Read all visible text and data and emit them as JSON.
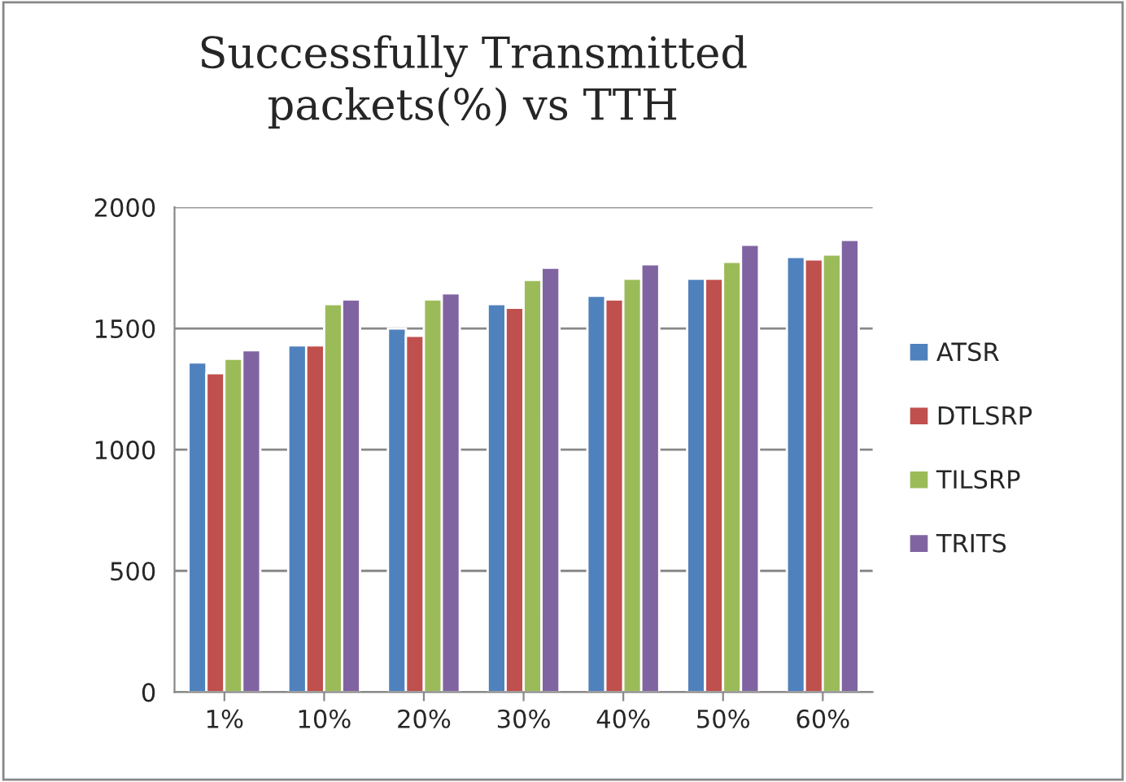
{
  "chart_data": {
    "type": "bar",
    "title": "Successfully Transmitted\npackets(%) vs TTH",
    "categories": [
      "1%",
      "10%",
      "20%",
      "30%",
      "40%",
      "50%",
      "60%"
    ],
    "series": [
      {
        "name": "ATSR",
        "color": "#4f81bd",
        "values": [
          1360,
          1430,
          1500,
          1600,
          1635,
          1705,
          1795
        ]
      },
      {
        "name": "DTLSRP",
        "color": "#c0504d",
        "values": [
          1315,
          1430,
          1470,
          1585,
          1620,
          1705,
          1785
        ]
      },
      {
        "name": "TILSRP",
        "color": "#9bbb59",
        "values": [
          1375,
          1600,
          1620,
          1700,
          1705,
          1775,
          1805
        ]
      },
      {
        "name": "TRITS",
        "color": "#8064a2",
        "values": [
          1410,
          1620,
          1645,
          1750,
          1765,
          1845,
          1865
        ]
      }
    ],
    "ylim": [
      0,
      2000
    ],
    "yticks": [
      0,
      500,
      1000,
      1500,
      2000
    ],
    "grid": "y",
    "legend": "right"
  }
}
